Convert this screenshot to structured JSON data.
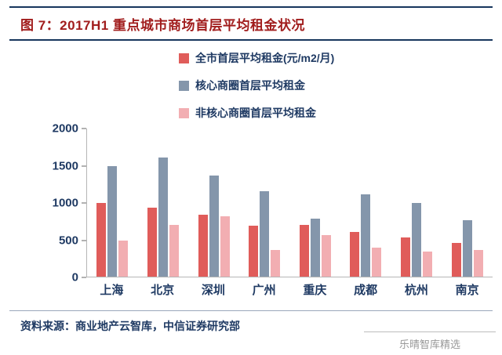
{
  "header": {
    "title": "图 7：2017H1 重点城市商场首层平均租金状况"
  },
  "chart_data": {
    "type": "bar",
    "categories": [
      "上海",
      "北京",
      "深圳",
      "广州",
      "重庆",
      "成都",
      "杭州",
      "南京"
    ],
    "series": [
      {
        "name": "全市首层平均租金(元/m2/月)",
        "color": "#e05c5a",
        "values": [
          990,
          930,
          840,
          690,
          700,
          600,
          530,
          460
        ]
      },
      {
        "name": "核心商圈首层平均租金",
        "color": "#8496ab",
        "values": [
          1490,
          1610,
          1360,
          1150,
          780,
          1110,
          990,
          760
        ]
      },
      {
        "name": "非核心商圈首层平均租金",
        "color": "#f2aeb2",
        "values": [
          490,
          700,
          810,
          360,
          560,
          390,
          340,
          360
        ]
      }
    ],
    "ylim": [
      0,
      2000
    ],
    "yticks": [
      0,
      500,
      1000,
      1500,
      2000
    ],
    "grid": false,
    "legend_position": "top"
  },
  "footer": {
    "source": "资料来源：商业地产云智库，中信证券研究部",
    "watermark": "乐晴智库精选"
  },
  "colors": {
    "title": "#a11d1d",
    "text": "#1f3a63",
    "rule": "#17365d"
  }
}
